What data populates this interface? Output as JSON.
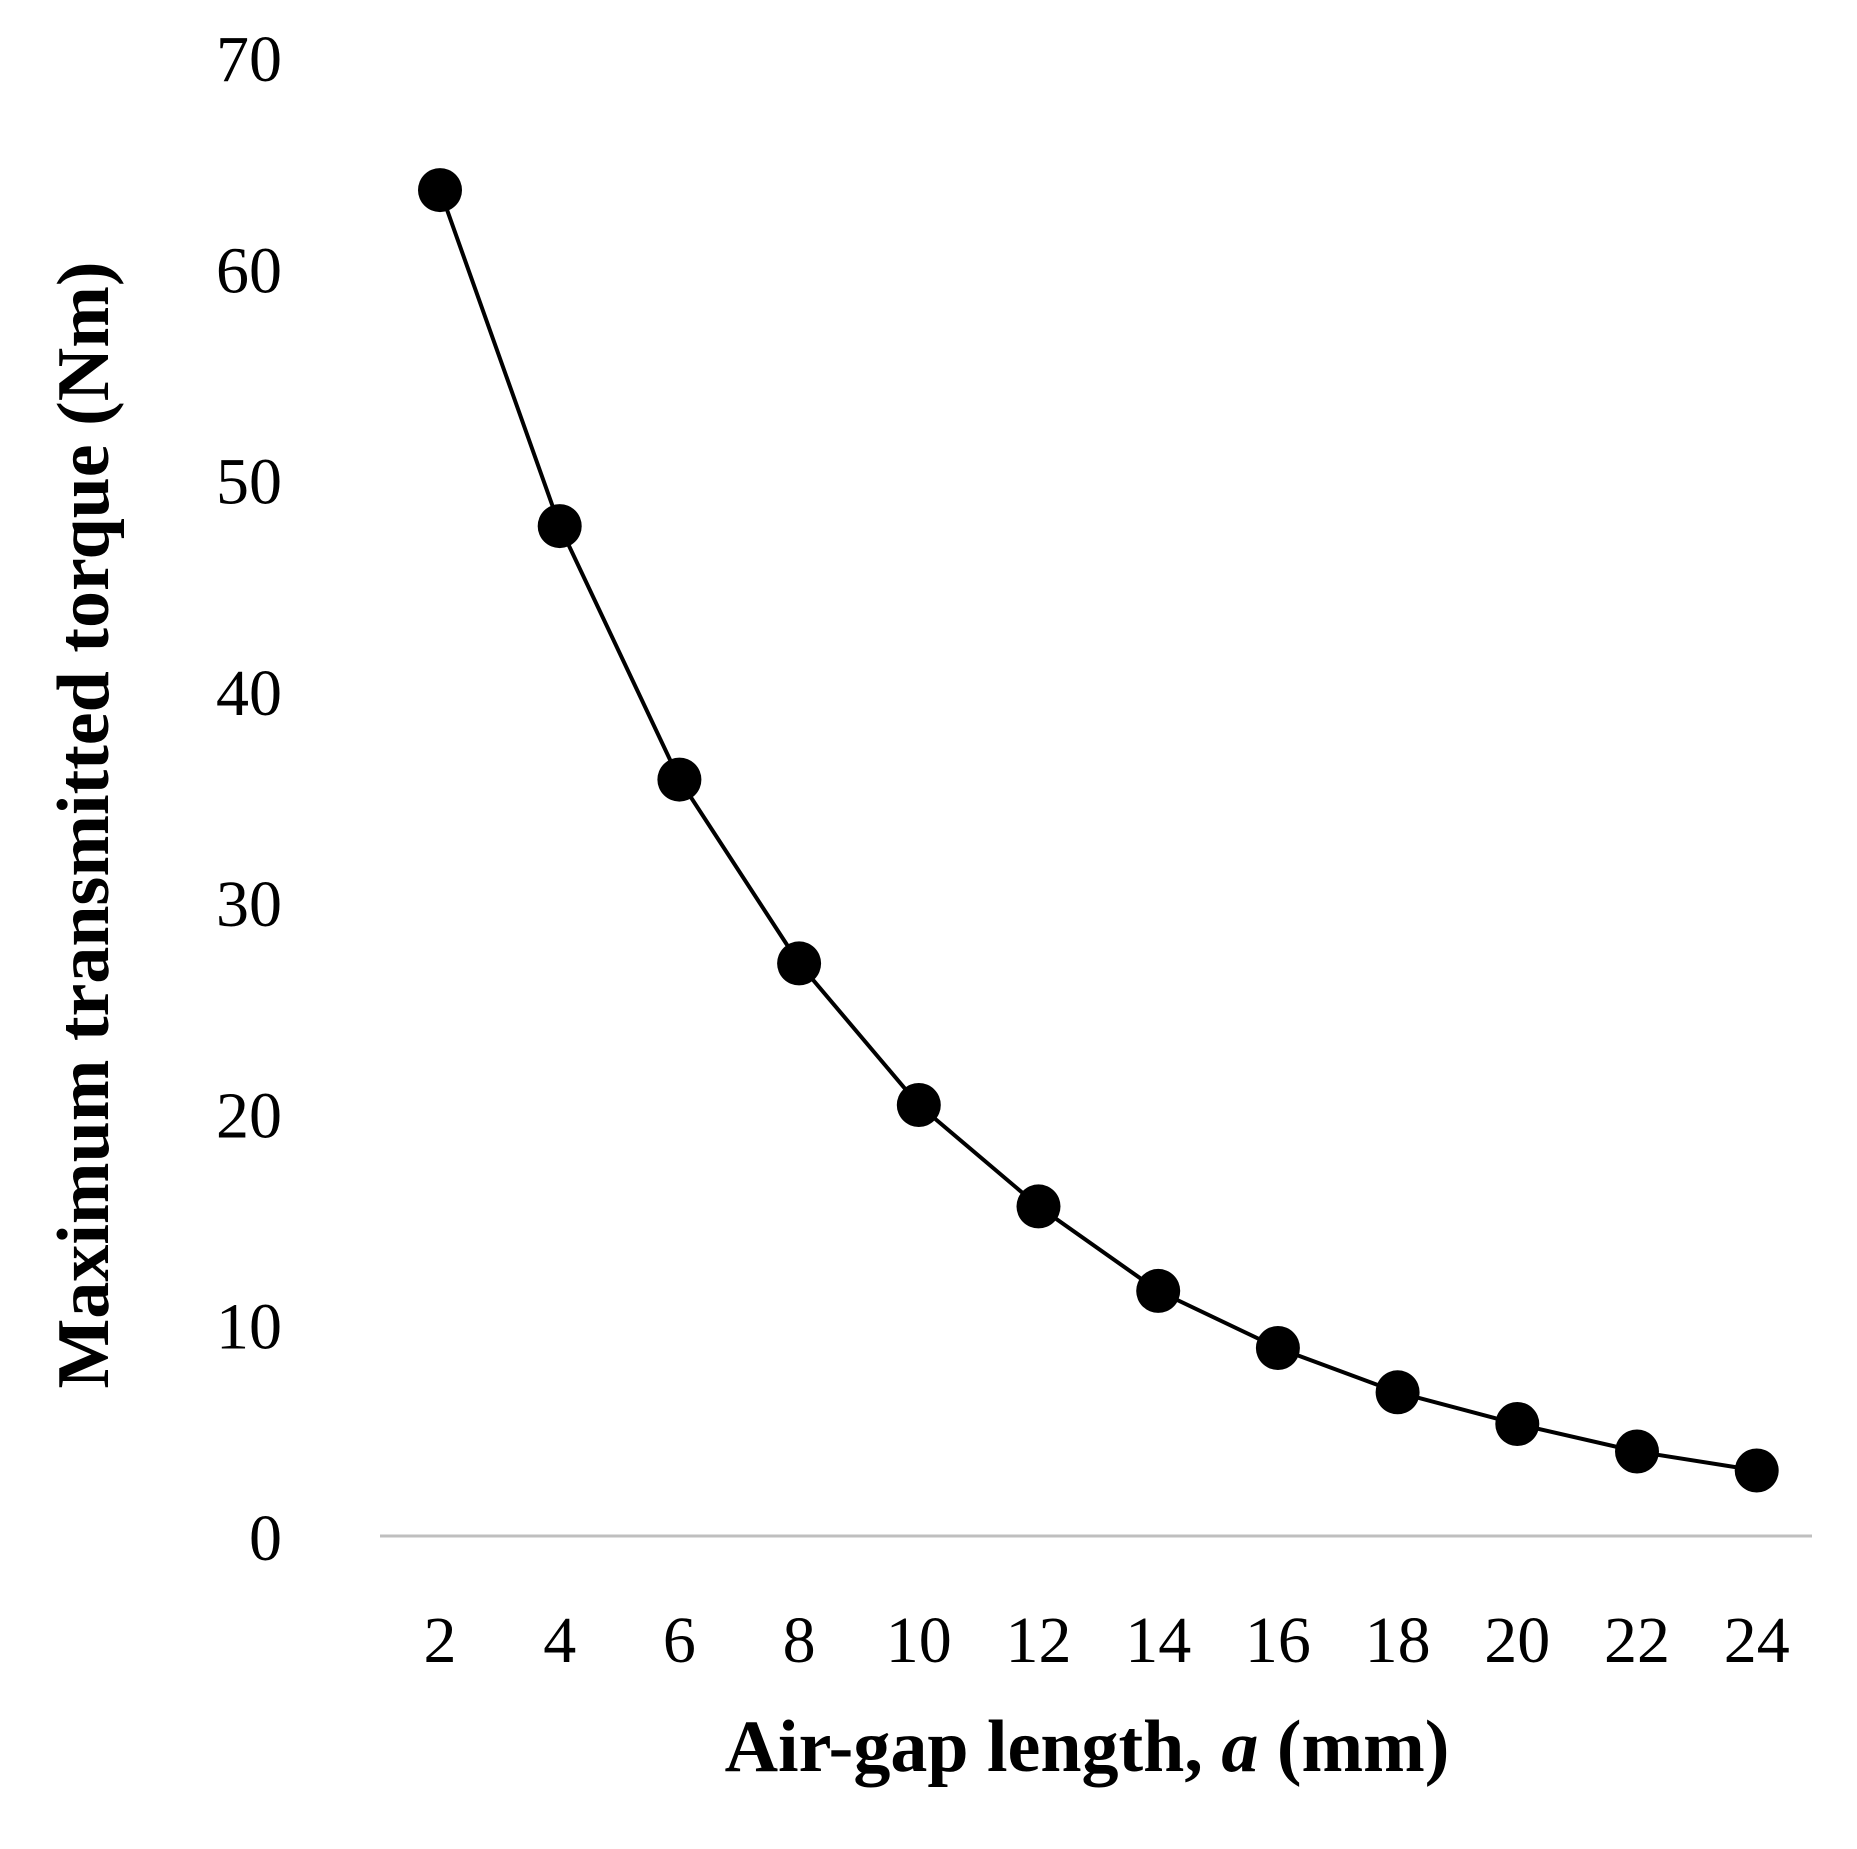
{
  "chart_data": {
    "type": "line",
    "title": "",
    "xlabel_parts": [
      "Air-gap length, ",
      "a",
      " (mm)"
    ],
    "ylabel": "Maximum transmitted torque (Nm)",
    "x_ticks": [
      "2",
      "4",
      "6",
      "8",
      "10",
      "12",
      "14",
      "16",
      "18",
      "20",
      "22",
      "24"
    ],
    "y_ticks": [
      "0",
      "10",
      "20",
      "30",
      "40",
      "50",
      "60",
      "70"
    ],
    "ylim": [
      0,
      70
    ],
    "grid": false,
    "legend": "none",
    "series": [
      {
        "x": [
          2,
          4,
          6,
          8,
          10,
          12,
          14,
          16,
          18,
          20,
          22,
          24
        ],
        "values": [
          63.7,
          47.8,
          35.8,
          27.1,
          20.4,
          15.6,
          11.6,
          8.9,
          6.8,
          5.3,
          4.0,
          3.1
        ],
        "color": "#000000",
        "marker": "circle"
      }
    ],
    "axis_line_color": "#bfbfbf"
  }
}
